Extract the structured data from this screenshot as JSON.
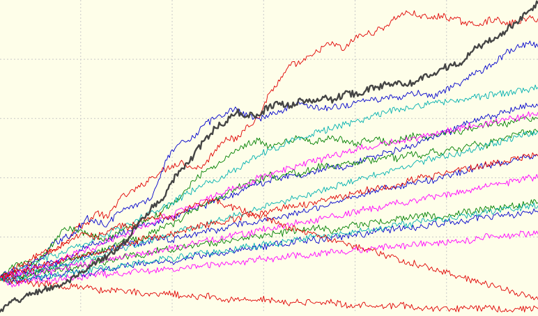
{
  "chart_data": {
    "type": "line",
    "title": "",
    "xlabel": "",
    "ylabel": "",
    "grid": true,
    "legend": "none",
    "xlim": [
      0,
      100
    ],
    "ylim": [
      0,
      100
    ],
    "x_grid": [
      15,
      32,
      49,
      66,
      83
    ],
    "y_grid": [
      24,
      43,
      62,
      81
    ],
    "series": [
      {
        "color": "#e00000",
        "emphasis": false,
        "values": [
          10,
          12,
          11,
          16,
          18,
          20,
          22,
          27,
          28,
          32,
          30,
          36,
          38,
          40,
          43,
          45,
          47,
          48,
          46,
          47,
          52,
          56,
          55,
          60,
          62,
          70,
          74,
          79,
          80,
          82,
          85,
          86,
          84,
          88,
          89,
          90,
          92,
          95,
          96,
          95,
          94,
          95,
          94,
          93,
          92,
          93,
          94,
          92,
          93,
          94,
          94
        ]
      },
      {
        "color": "#444444",
        "emphasis": true,
        "values": [
          0,
          3,
          4,
          6,
          7,
          8,
          9,
          11,
          13,
          16,
          18,
          20,
          24,
          29,
          33,
          36,
          42,
          46,
          50,
          55,
          59,
          61,
          64,
          63,
          63,
          66,
          67,
          66,
          68,
          67,
          69,
          68,
          70,
          70,
          71,
          72,
          73,
          74,
          73,
          75,
          76,
          78,
          79,
          80,
          84,
          86,
          88,
          90,
          93,
          96,
          99
        ]
      },
      {
        "color": "#0000cc",
        "emphasis": false,
        "values": [
          11,
          13,
          14,
          16,
          17,
          22,
          24,
          25,
          30,
          29,
          28,
          32,
          33,
          35,
          36,
          45,
          52,
          55,
          56,
          60,
          62,
          64,
          65,
          63,
          62,
          63,
          64,
          66,
          67,
          66,
          65,
          66,
          66,
          67,
          68,
          68,
          69,
          68,
          70,
          70,
          69,
          70,
          72,
          74,
          76,
          78,
          80,
          83,
          85,
          86,
          85
        ]
      },
      {
        "color": "#0000cc",
        "emphasis": false,
        "values": [
          11,
          12,
          13,
          12,
          14,
          15,
          17,
          18,
          21,
          22,
          23,
          25,
          26,
          28,
          28,
          29,
          30,
          32,
          33,
          34,
          36,
          37,
          38,
          40,
          41,
          42,
          43,
          44,
          43,
          45,
          46,
          47,
          46,
          48,
          49,
          50,
          51,
          52,
          53,
          54,
          56,
          57,
          58,
          60,
          61,
          62,
          63,
          64,
          65,
          66,
          66
        ]
      },
      {
        "color": "#0000cc",
        "emphasis": false,
        "values": [
          11,
          10,
          12,
          14,
          15,
          16,
          15,
          17,
          18,
          19,
          20,
          21,
          22,
          22,
          23,
          24,
          23,
          24,
          25,
          26,
          26,
          27,
          28,
          28,
          29,
          30,
          30,
          31,
          32,
          33,
          34,
          35,
          36,
          37,
          38,
          39,
          40,
          40,
          41,
          42,
          42,
          43,
          44,
          45,
          46,
          47,
          47,
          48,
          49,
          50,
          50
        ]
      },
      {
        "color": "#0000cc",
        "emphasis": false,
        "values": [
          11,
          9,
          10,
          11,
          11,
          12,
          12,
          13,
          12,
          13,
          14,
          14,
          15,
          15,
          16,
          16,
          16,
          17,
          18,
          18,
          19,
          19,
          20,
          20,
          21,
          21,
          22,
          22,
          23,
          23,
          23,
          24,
          24,
          25,
          25,
          26,
          26,
          27,
          27,
          27,
          28,
          28,
          29,
          29,
          30,
          30,
          31,
          31,
          31,
          32,
          32
        ]
      },
      {
        "color": "#008000",
        "emphasis": false,
        "values": [
          11,
          14,
          16,
          15,
          18,
          22,
          27,
          26,
          25,
          24,
          23,
          25,
          27,
          29,
          30,
          32,
          35,
          38,
          42,
          45,
          46,
          50,
          52,
          54,
          55,
          53,
          54,
          55,
          56,
          54,
          55,
          56,
          55,
          54,
          55,
          56,
          54,
          55,
          56,
          57,
          56,
          57,
          58,
          58,
          59,
          60,
          61,
          60,
          61,
          62,
          62
        ]
      },
      {
        "color": "#008000",
        "emphasis": false,
        "values": [
          11,
          10,
          11,
          12,
          13,
          14,
          16,
          17,
          18,
          19,
          20,
          22,
          24,
          23,
          25,
          27,
          28,
          30,
          33,
          34,
          36,
          38,
          40,
          41,
          42,
          44,
          43,
          45,
          44,
          46,
          47,
          46,
          48,
          47,
          49,
          48,
          50,
          49,
          51,
          50,
          52,
          51,
          53,
          52,
          54,
          53,
          55,
          56,
          57,
          58,
          58
        ]
      },
      {
        "color": "#008000",
        "emphasis": false,
        "values": [
          11,
          12,
          11,
          12,
          13,
          13,
          14,
          14,
          15,
          16,
          16,
          17,
          18,
          18,
          19,
          20,
          20,
          21,
          21,
          22,
          22,
          23,
          23,
          24,
          24,
          25,
          25,
          26,
          26,
          27,
          27,
          26,
          27,
          28,
          28,
          29,
          29,
          30,
          30,
          31,
          31,
          30,
          31,
          32,
          32,
          33,
          33,
          34,
          34,
          35,
          35
        ]
      },
      {
        "color": "#00b0b0",
        "emphasis": false,
        "values": [
          11,
          12,
          14,
          15,
          17,
          18,
          19,
          21,
          22,
          24,
          25,
          27,
          28,
          30,
          32,
          33,
          35,
          37,
          39,
          41,
          42,
          44,
          46,
          48,
          50,
          52,
          53,
          55,
          56,
          57,
          58,
          59,
          60,
          61,
          62,
          63,
          64,
          65,
          65,
          66,
          67,
          67,
          68,
          68,
          69,
          69,
          70,
          70,
          71,
          71,
          72
        ]
      },
      {
        "color": "#00b0b0",
        "emphasis": false,
        "values": [
          11,
          11,
          12,
          13,
          14,
          14,
          15,
          16,
          17,
          18,
          19,
          20,
          21,
          22,
          23,
          24,
          25,
          26,
          27,
          28,
          29,
          30,
          31,
          32,
          33,
          34,
          35,
          36,
          37,
          38,
          39,
          40,
          41,
          42,
          43,
          44,
          45,
          46,
          47,
          48,
          49,
          50,
          50,
          51,
          52,
          53,
          54,
          55,
          56,
          57,
          58
        ]
      },
      {
        "color": "#00b0b0",
        "emphasis": false,
        "values": [
          11,
          10,
          10,
          11,
          11,
          12,
          12,
          13,
          13,
          14,
          14,
          15,
          15,
          16,
          16,
          17,
          17,
          18,
          18,
          19,
          19,
          20,
          20,
          21,
          21,
          22,
          22,
          23,
          23,
          24,
          24,
          25,
          25,
          26,
          26,
          27,
          27,
          28,
          28,
          29,
          29,
          30,
          30,
          31,
          31,
          32,
          32,
          33,
          33,
          34,
          34
        ]
      },
      {
        "color": "#ff00ff",
        "emphasis": false,
        "values": [
          11,
          12,
          13,
          14,
          15,
          16,
          17,
          19,
          20,
          21,
          23,
          24,
          25,
          27,
          28,
          30,
          31,
          33,
          34,
          36,
          37,
          39,
          40,
          41,
          43,
          44,
          45,
          46,
          47,
          48,
          49,
          50,
          51,
          52,
          53,
          53,
          54,
          55,
          55,
          56,
          57,
          58,
          58,
          59,
          60,
          60,
          61,
          62,
          62,
          63,
          64
        ]
      },
      {
        "color": "#ff00ff",
        "emphasis": false,
        "values": [
          11,
          11,
          12,
          12,
          13,
          13,
          14,
          15,
          15,
          16,
          17,
          17,
          18,
          19,
          19,
          20,
          21,
          21,
          22,
          23,
          23,
          24,
          25,
          25,
          26,
          27,
          27,
          28,
          29,
          29,
          30,
          31,
          31,
          32,
          33,
          33,
          34,
          35,
          35,
          36,
          37,
          37,
          38,
          39,
          39,
          40,
          41,
          41,
          42,
          43,
          43
        ]
      },
      {
        "color": "#ff00ff",
        "emphasis": false,
        "values": [
          11,
          9,
          9,
          10,
          10,
          10,
          11,
          11,
          11,
          12,
          12,
          12,
          13,
          13,
          13,
          14,
          14,
          14,
          15,
          15,
          15,
          16,
          16,
          16,
          17,
          17,
          17,
          18,
          18,
          18,
          19,
          19,
          19,
          20,
          20,
          20,
          21,
          21,
          21,
          22,
          22,
          22,
          23,
          23,
          23,
          24,
          24,
          24,
          25,
          25,
          25
        ]
      },
      {
        "color": "#e00000",
        "emphasis": false,
        "values": [
          11,
          13,
          15,
          17,
          19,
          20,
          22,
          24,
          25,
          24,
          26,
          28,
          27,
          29,
          30,
          31,
          30,
          32,
          34,
          35,
          36,
          34,
          33,
          32,
          31,
          30,
          28,
          27,
          26,
          25,
          24,
          23,
          22,
          21,
          20,
          19,
          18,
          17,
          16,
          15,
          14,
          13,
          12,
          11,
          10,
          9,
          8,
          7,
          6,
          5,
          4
        ]
      },
      {
        "color": "#e00000",
        "emphasis": false,
        "values": [
          11,
          12,
          13,
          14,
          15,
          16,
          17,
          18,
          18,
          19,
          20,
          21,
          22,
          23,
          24,
          24,
          25,
          26,
          27,
          28,
          28,
          29,
          30,
          31,
          31,
          32,
          33,
          34,
          34,
          35,
          36,
          37,
          37,
          38,
          39,
          40,
          40,
          41,
          42,
          43,
          43,
          44,
          45,
          46,
          46,
          47,
          48,
          48,
          49,
          50,
          50
        ]
      },
      {
        "color": "#e00000",
        "emphasis": false,
        "values": [
          11,
          10,
          10,
          9,
          9,
          9,
          8,
          8,
          8,
          7,
          7,
          7,
          7,
          6,
          6,
          6,
          6,
          5,
          5,
          5,
          5,
          4,
          4,
          4,
          4,
          4,
          3,
          3,
          3,
          3,
          3,
          3,
          2,
          2,
          2,
          2,
          2,
          2,
          2,
          1,
          1,
          1,
          1,
          1,
          1,
          1,
          1,
          1,
          1,
          1,
          1
        ]
      }
    ]
  }
}
